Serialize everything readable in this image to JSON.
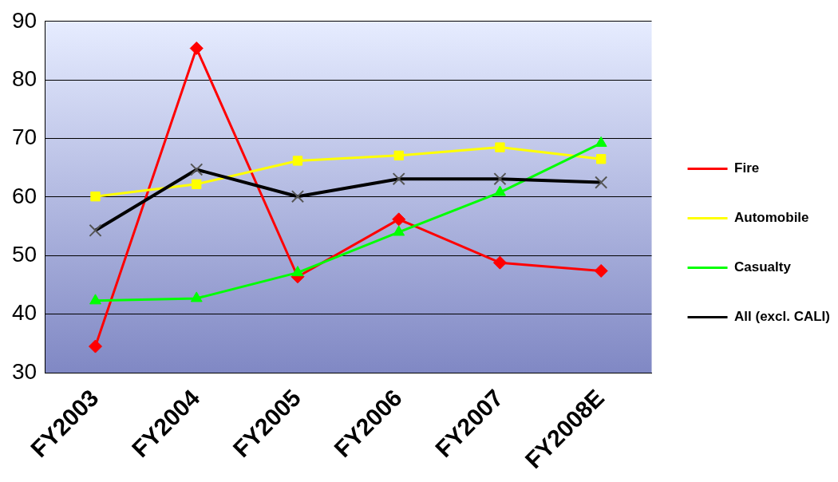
{
  "chart_data": {
    "type": "line",
    "categories": [
      "FY2003",
      "FY2004",
      "FY2005",
      "FY2006",
      "FY2007",
      "FY2008E"
    ],
    "series": [
      {
        "name": "Fire",
        "color": "#ff0000",
        "marker": "diamond",
        "values": [
          34.5,
          85.4,
          46.4,
          56.2,
          48.8,
          47.4
        ]
      },
      {
        "name": "Automobile",
        "color": "#ffff00",
        "marker": "square",
        "values": [
          60.1,
          62.2,
          66.2,
          67.1,
          68.5,
          66.5
        ]
      },
      {
        "name": "Casualty",
        "color": "#00ff00",
        "marker": "triangle",
        "values": [
          42.3,
          42.7,
          47.1,
          54.0,
          60.8,
          69.2
        ]
      },
      {
        "name": "All (excl. CALI)",
        "color": "#000000",
        "marker": "cross",
        "values": [
          54.3,
          64.7,
          60.1,
          63.1,
          63.1,
          62.5
        ]
      }
    ],
    "ylim": [
      30,
      90
    ],
    "yticks": [
      30,
      40,
      50,
      60,
      70,
      80,
      90
    ],
    "grid": "y",
    "legend": "right",
    "line_style": "solid"
  }
}
